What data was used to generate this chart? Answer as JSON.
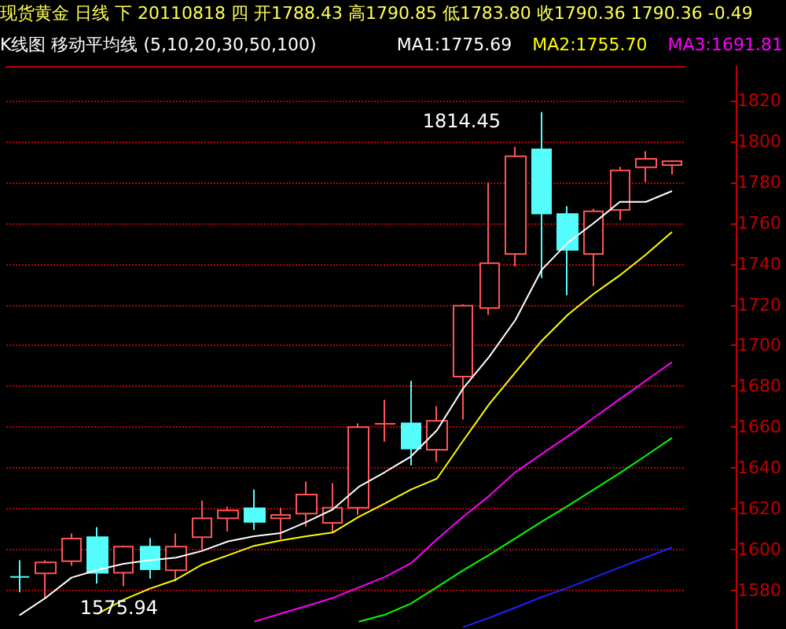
{
  "chart_data": {
    "type": "candlestick",
    "title": "现货黄金 日线 下 20110818 四 开1788.43 高1790.85 低1783.80 收1790.36 1790.36 -0.49",
    "subtitle": "K线图 移动平均线 (5,10,20,30,50,100)",
    "categories": [
      null,
      null,
      null,
      null,
      null,
      null,
      null,
      null,
      null,
      null,
      null,
      null,
      null,
      null,
      null,
      null,
      null,
      null,
      null,
      null,
      null,
      null,
      null,
      null,
      null,
      null
    ],
    "ohlc": [
      [
        1586.5,
        1594.7,
        1579,
        1586.5
      ],
      [
        1588.3,
        1594.7,
        1575.94,
        1593.7
      ],
      [
        1594.2,
        1607.8,
        1592,
        1605.3
      ],
      [
        1606,
        1610.9,
        1583.3,
        1588.6
      ],
      [
        1588.6,
        1602,
        1582,
        1601.4
      ],
      [
        1601.4,
        1605.5,
        1585.7,
        1590.3
      ],
      [
        1589.8,
        1607.8,
        1584.4,
        1601.4
      ],
      [
        1606,
        1624,
        1599.9,
        1615.3
      ],
      [
        1615.3,
        1621,
        1608.8,
        1619.1
      ],
      [
        1620.2,
        1629.4,
        1609.6,
        1613.5
      ],
      [
        1615.3,
        1620.5,
        1605,
        1616.9
      ],
      [
        1617.6,
        1633.3,
        1611.2,
        1626.9
      ],
      [
        1613,
        1632.5,
        1608.4,
        1620.5
      ],
      [
        1620.5,
        1661.8,
        1617,
        1660
      ],
      [
        1661.6,
        1673.4,
        1652.8,
        1661.6
      ],
      [
        1661.8,
        1682.7,
        1641.2,
        1649.5
      ],
      [
        1648.9,
        1670.3,
        1643,
        1663.1
      ],
      [
        1684.7,
        1720.2,
        1663.6,
        1719.5
      ],
      [
        1718.4,
        1779.9,
        1715,
        1740.3
      ],
      [
        1744.9,
        1797.4,
        1738.8,
        1792.8
      ],
      [
        1796.1,
        1814.45,
        1733.1,
        1764.7
      ],
      [
        1764.4,
        1768.3,
        1724.6,
        1746.9
      ],
      [
        1744.9,
        1767,
        1729.2,
        1765.8
      ],
      [
        1766.5,
        1787.6,
        1761.4,
        1785.8
      ],
      [
        1787.4,
        1795.3,
        1780.1,
        1791.5
      ],
      [
        1788.43,
        1790.85,
        1783.8,
        1790.36
      ]
    ],
    "colors": [
      "#54fcfc",
      "#ff5454",
      "#ff5454",
      "#54fcfc",
      "#ff5454",
      "#54fcfc",
      "#ff5454",
      "#ff5454",
      "#ff5454",
      "#54fcfc",
      "#ff5454",
      "#ff5454",
      "#ff5454",
      "#ff5454",
      "#ff5454",
      "#54fcfc",
      "#ff5454",
      "#ff5454",
      "#ff5454",
      "#ff5454",
      "#54fcfc",
      "#54fcfc",
      "#ff5454",
      "#ff5454",
      "#ff5454",
      "#ff5454"
    ],
    "series": [
      {
        "type": "line",
        "name": "MA1:1775.69",
        "color": "#ffffff",
        "values": [
          1567.7,
          1576.2,
          1586.2,
          1590,
          1593,
          1594.7,
          1596,
          1599.3,
          1604,
          1606.5,
          1608,
          1613.5,
          1619.6,
          1630.7,
          1637.9,
          1645.6,
          1658.5,
          1679,
          1694.5,
          1712.5,
          1737,
          1750.3,
          1760,
          1770.4,
          1770.4,
          1775.7
        ]
      },
      {
        "type": "line",
        "name": "MA2:1755.70",
        "color": "#ffff00",
        "values": [
          null,
          null,
          null,
          1568.5,
          1575.4,
          1580.8,
          1585.2,
          1592.6,
          1597.2,
          1601.8,
          1604.4,
          1606.5,
          1608.3,
          1616,
          1622.5,
          1629.4,
          1634.8,
          1653.3,
          1671.3,
          1686.8,
          1702.2,
          1715,
          1725.3,
          1734.4,
          1744.6,
          1755.7
        ]
      },
      {
        "type": "line",
        "name": "MA3:1691.81",
        "color": "#ff00ff",
        "values": [
          null,
          null,
          null,
          null,
          null,
          null,
          null,
          null,
          null,
          1564.6,
          1568.5,
          1572.3,
          1576.2,
          1581.4,
          1586.5,
          1593.2,
          1605,
          1616,
          1626.3,
          1637.9,
          1646.7,
          1655.4,
          1664.5,
          1673.7,
          1682.8,
          1691.8
        ]
      },
      {
        "type": "line",
        "color": "#00ff00",
        "values": [
          null,
          null,
          null,
          null,
          null,
          null,
          null,
          null,
          null,
          null,
          null,
          null,
          null,
          1564.6,
          1568,
          1573.5,
          1581.6,
          1589.8,
          1597.4,
          1605.5,
          1613.6,
          1621.3,
          1629.4,
          1637.5,
          1646,
          1654.7
        ]
      },
      {
        "type": "line",
        "color": "#2020ff",
        "values": [
          null,
          null,
          null,
          null,
          null,
          null,
          null,
          null,
          null,
          null,
          null,
          null,
          null,
          null,
          null,
          null,
          null,
          1561.9,
          1566.5,
          1571.5,
          1576.6,
          1581.2,
          1586.2,
          1591.2,
          1596.1,
          1601
        ]
      }
    ],
    "ylim": [
      1561,
      1837
    ],
    "yticks": [
      1580,
      1600,
      1620,
      1640,
      1660,
      1680,
      1700,
      1720,
      1740,
      1760,
      1780,
      1800,
      1820
    ],
    "tick_labels": "y",
    "grid": "y",
    "legend": "top right",
    "marker": "none",
    "line_style": "solid",
    "annotations": [
      "1814.45",
      "1575.94"
    ]
  }
}
